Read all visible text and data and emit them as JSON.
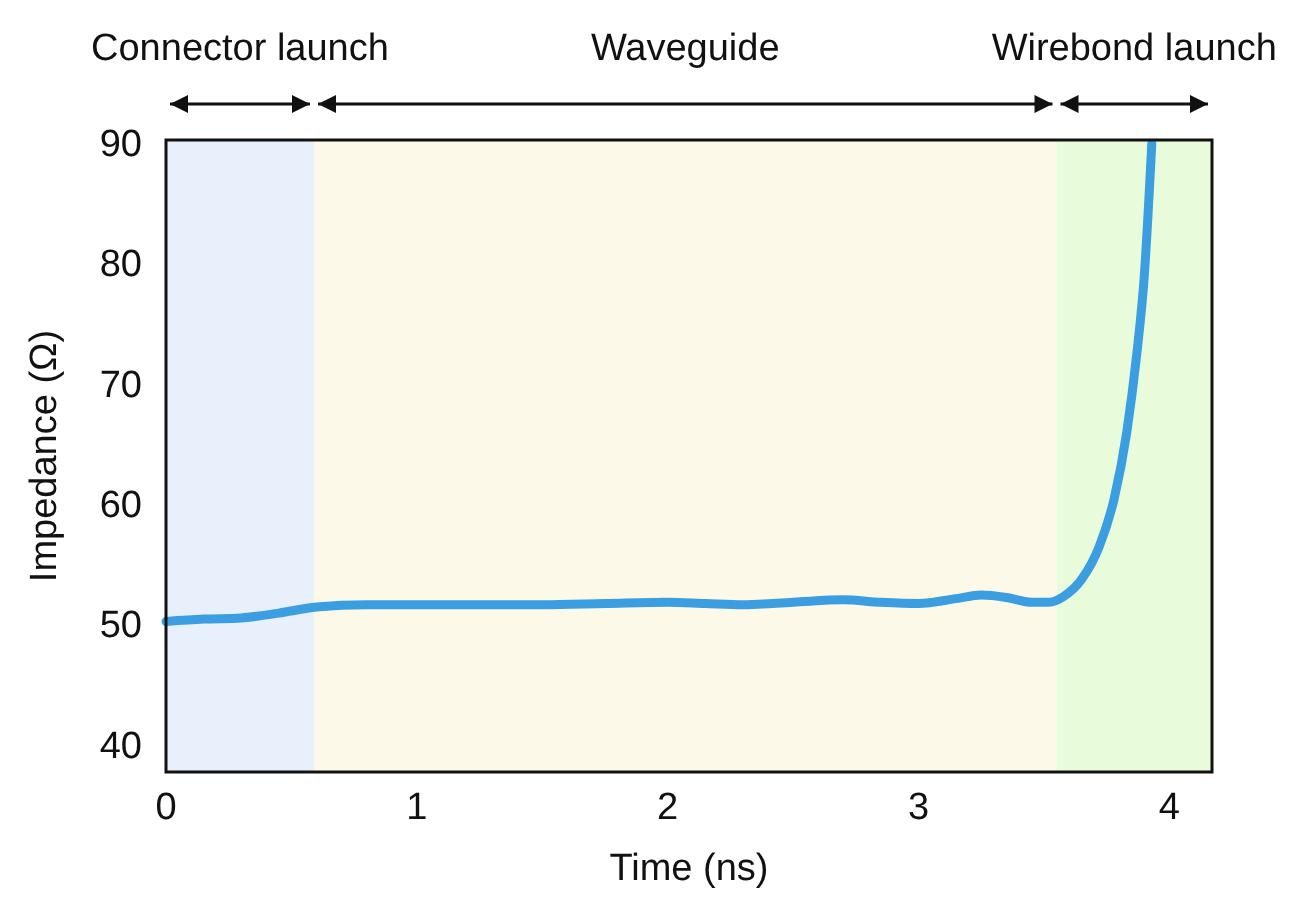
{
  "chart_data": {
    "type": "line",
    "xlabel": "Time (ns)",
    "ylabel": "Impedance (Ω)",
    "xlim": [
      0,
      4.17
    ],
    "xticks": [
      0,
      1,
      2,
      3,
      4
    ],
    "ylim": [
      37.8,
      90.3
    ],
    "yticks": [
      40,
      50,
      60,
      70,
      80,
      90
    ],
    "grid": false,
    "marker": "none",
    "line_style": "solid",
    "series": [
      {
        "color": "#3a9ee0",
        "x": [
          0,
          0.15,
          0.3,
          0.45,
          0.6,
          0.8,
          1,
          1.25,
          1.5,
          1.75,
          2,
          2.15,
          2.3,
          2.5,
          2.7,
          2.85,
          3,
          3.15,
          3.25,
          3.35,
          3.45,
          3.52,
          3.58,
          3.65,
          3.72,
          3.78,
          3.83,
          3.87,
          3.9,
          3.93
        ],
        "values": [
          50.3,
          50.5,
          50.6,
          51,
          51.5,
          51.7,
          51.7,
          51.7,
          51.7,
          51.8,
          51.9,
          51.8,
          51.7,
          51.9,
          52.1,
          51.9,
          51.8,
          52.2,
          52.5,
          52.3,
          51.9,
          51.9,
          52.4,
          53.8,
          56.5,
          60.5,
          66,
          72.5,
          79,
          90
        ]
      }
    ],
    "bands": [
      {
        "axis": "x",
        "from": 0,
        "to": 0.59,
        "label": "Connector launch",
        "color": "#e8f0fc"
      },
      {
        "axis": "x",
        "from": 0.59,
        "to": 3.55,
        "label": "Waveguide",
        "color": "#fdf9e8"
      },
      {
        "axis": "x",
        "from": 3.55,
        "to": 4.17,
        "label": "Wirebond launch",
        "color": "#e8fcdc"
      }
    ]
  }
}
